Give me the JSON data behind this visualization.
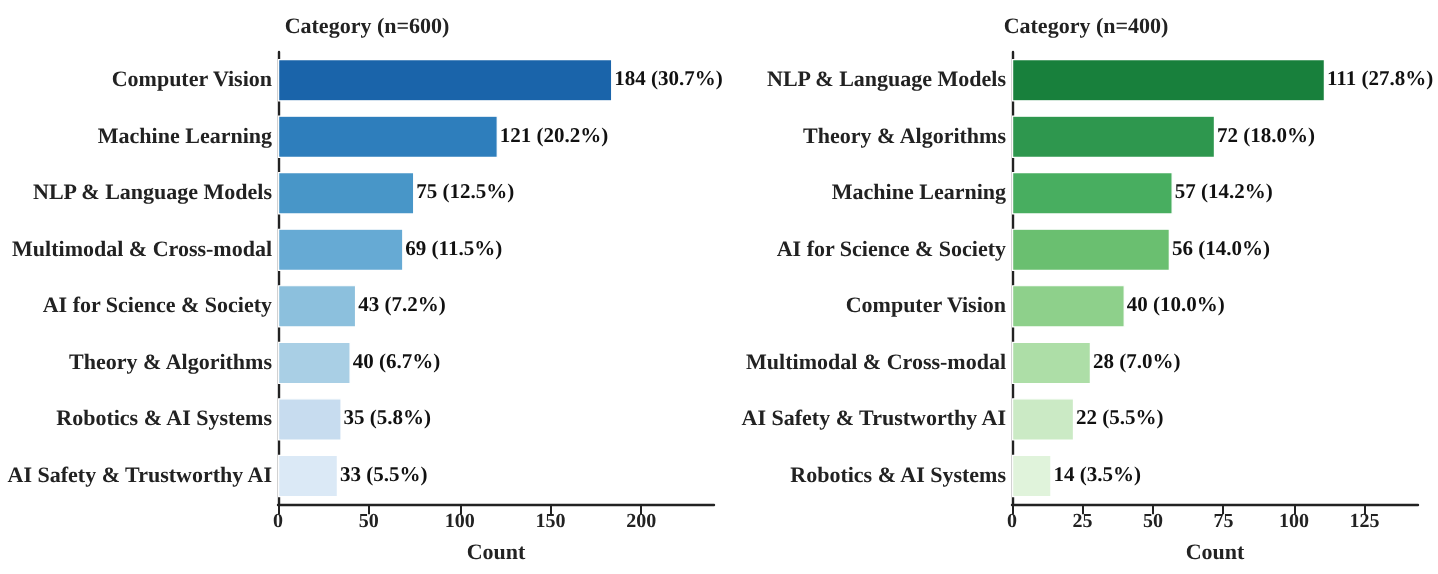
{
  "chart_data": [
    {
      "type": "bar",
      "orientation": "horizontal",
      "title": "Category (n=600)",
      "xlabel": "Count",
      "categories": [
        "Computer Vision",
        "Machine Learning",
        "NLP & Language Models",
        "Multimodal & Cross-modal",
        "AI for Science & Society",
        "Theory & Algorithms",
        "Robotics & AI Systems",
        "AI Safety & Trustworthy AI"
      ],
      "values": [
        184,
        121,
        75,
        69,
        43,
        40,
        35,
        33
      ],
      "colors": [
        "#1a64aa",
        "#2e7ebc",
        "#4896c8",
        "#66aad4",
        "#8cc0dd",
        "#a9cfe5",
        "#c7dcef",
        "#dbe9f6"
      ],
      "value_labels": [
        "184 (30.7%)",
        "121 (20.2%)",
        "75 (12.5%)",
        "69 (11.5%)",
        "43 (7.2%)",
        "40 (6.7%)",
        "35 (5.8%)",
        "33 (5.5%)"
      ],
      "xlim": [
        0,
        240
      ],
      "xticks": [
        0,
        50,
        100,
        150,
        200
      ],
      "grid": false
    },
    {
      "type": "bar",
      "orientation": "horizontal",
      "title": "Category (n=400)",
      "xlabel": "Count",
      "categories": [
        "NLP & Language Models",
        "Theory & Algorithms",
        "Machine Learning",
        "AI for Science & Society",
        "Computer Vision",
        "Multimodal & Cross-modal",
        "AI Safety & Trustworthy AI",
        "Robotics & AI Systems"
      ],
      "values": [
        111,
        72,
        57,
        56,
        40,
        28,
        22,
        14
      ],
      "colors": [
        "#18803c",
        "#2e974e",
        "#48ae60",
        "#6abf70",
        "#8ed08b",
        "#addea7",
        "#cbeac5",
        "#e0f3db"
      ],
      "value_labels": [
        "111 (27.8%)",
        "72 (18.0%)",
        "57 (14.2%)",
        "56 (14.0%)",
        "40 (10.0%)",
        "28 (7.0%)",
        "22 (5.5%)",
        "14 (3.5%)"
      ],
      "xlim": [
        0,
        144
      ],
      "xticks": [
        0,
        25,
        50,
        75,
        100,
        125
      ],
      "grid": false
    }
  ]
}
